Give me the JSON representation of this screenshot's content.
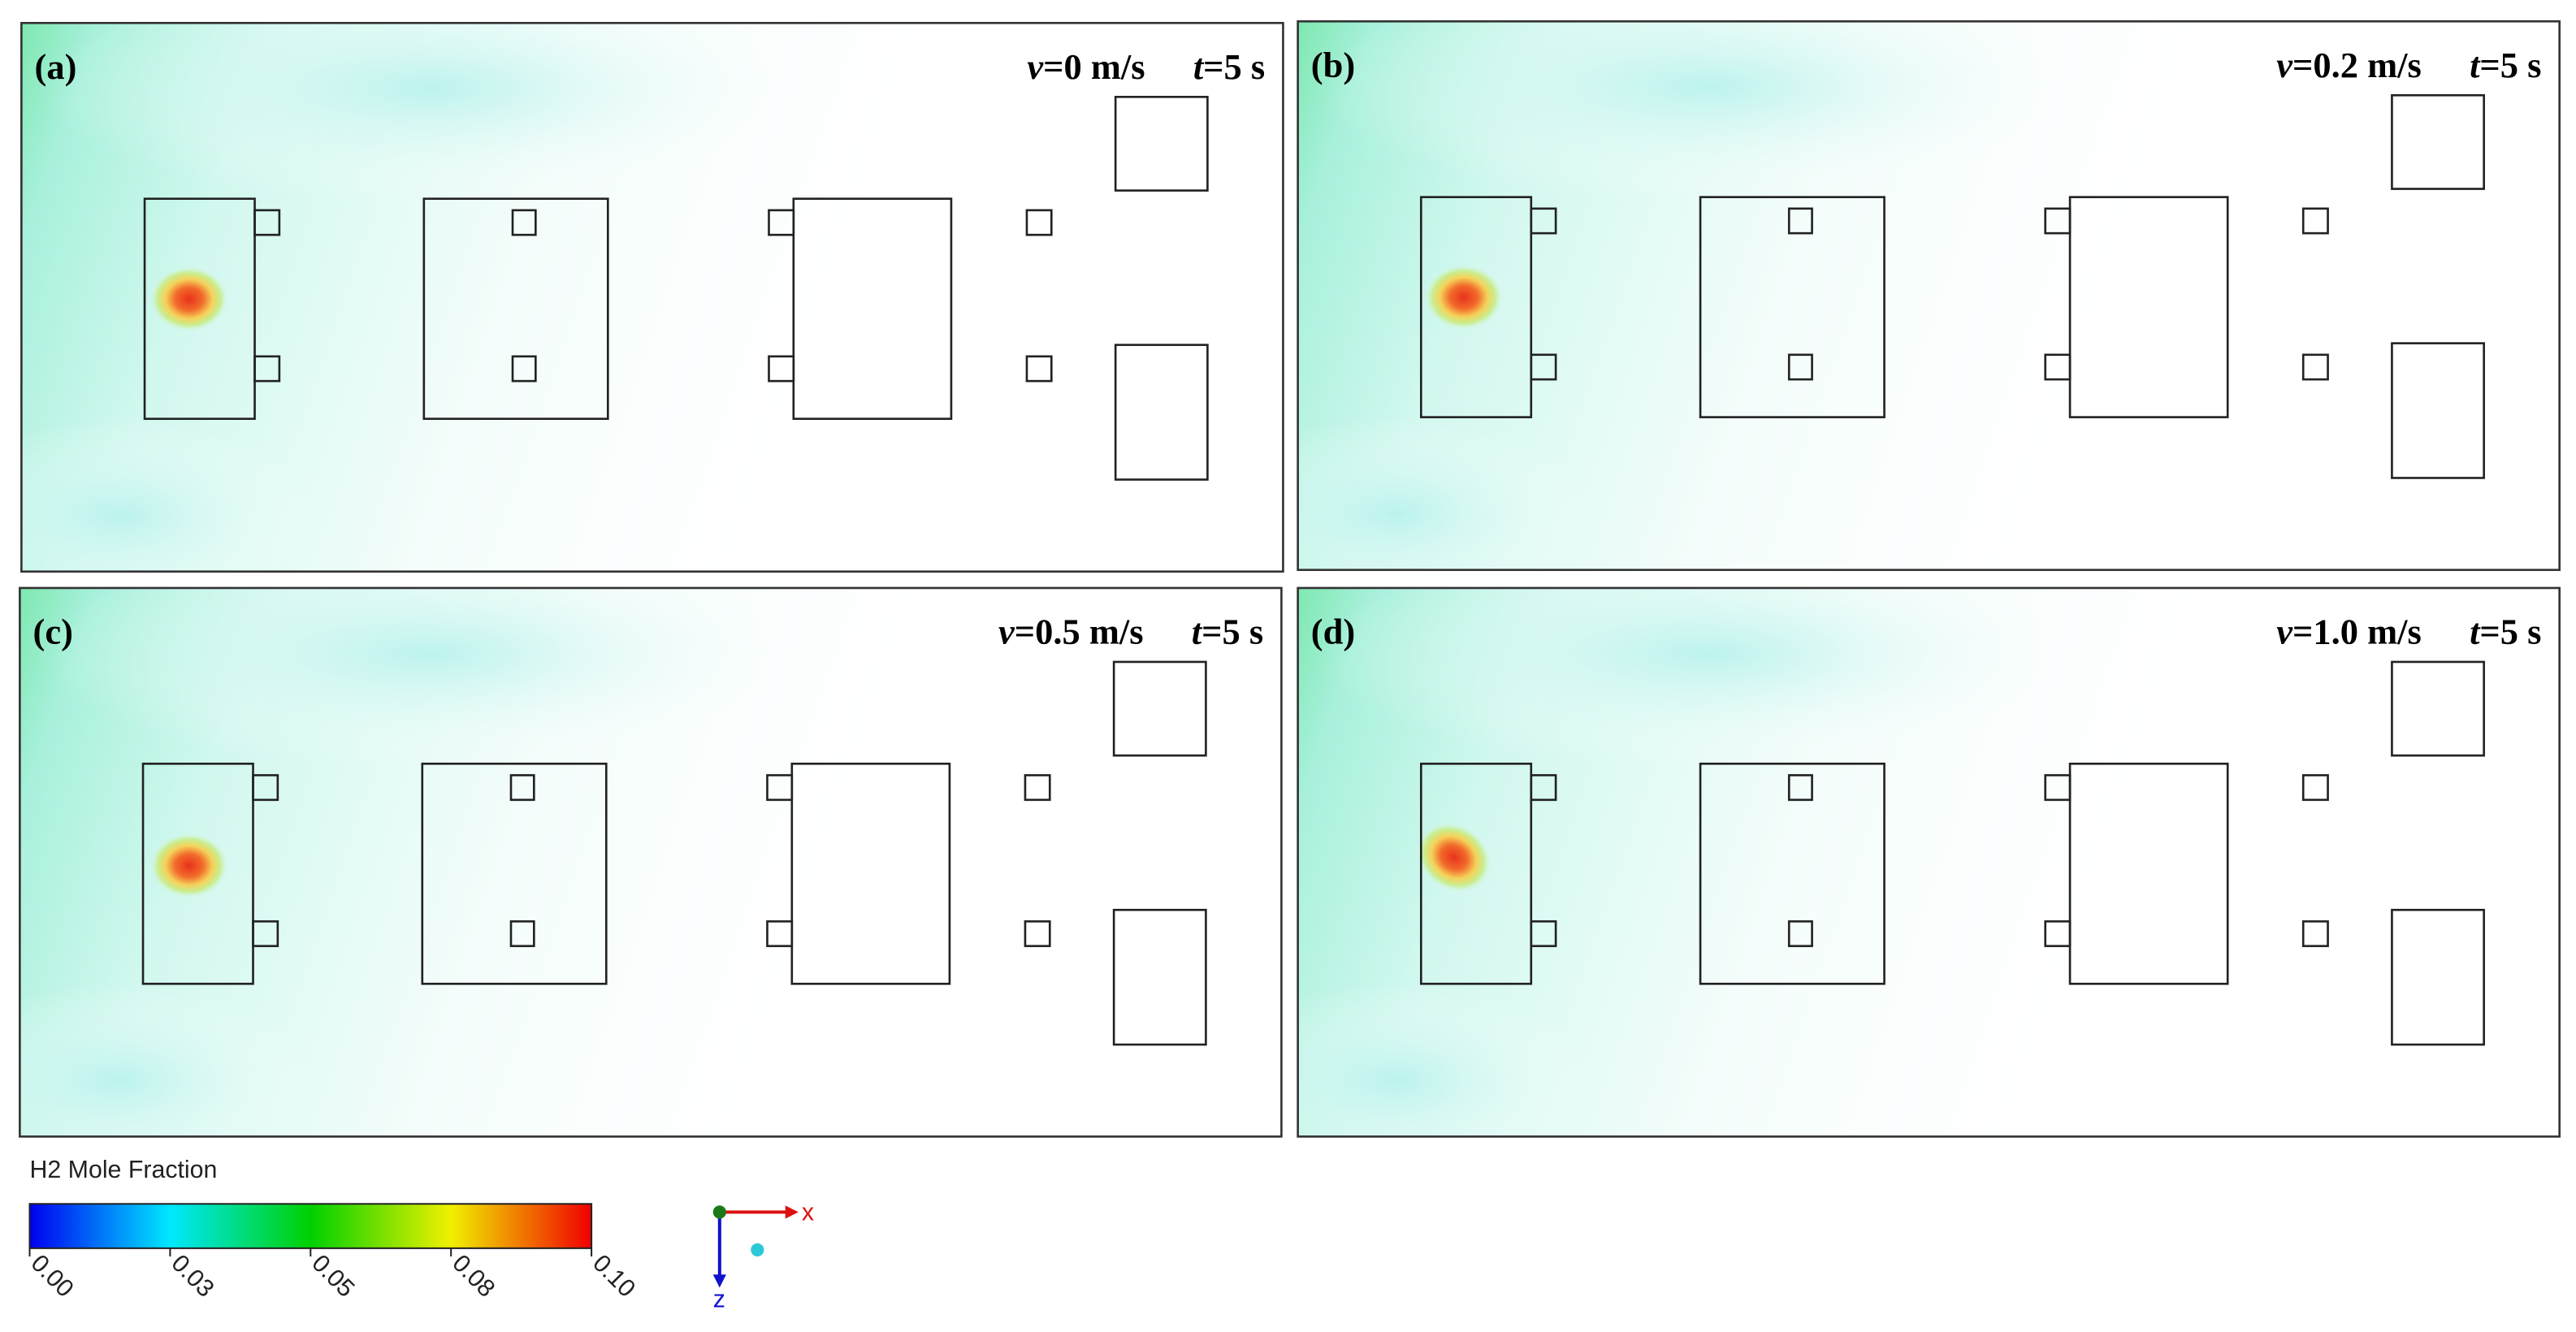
{
  "panels": [
    {
      "label": "(a)",
      "velocity": {
        "symbol": "v",
        "text": "=0 m/s"
      },
      "time": {
        "symbol": "t",
        "text": "=5 s"
      }
    },
    {
      "label": "(b)",
      "velocity": {
        "symbol": "v",
        "text": "=0.2 m/s"
      },
      "time": {
        "symbol": "t",
        "text": "=5 s"
      }
    },
    {
      "label": "(c)",
      "velocity": {
        "symbol": "v",
        "text": "=0.5 m/s"
      },
      "time": {
        "symbol": "t",
        "text": "=5 s"
      }
    },
    {
      "label": "(d)",
      "velocity": {
        "symbol": "v",
        "text": "=1.0 m/s"
      },
      "time": {
        "symbol": "t",
        "text": "=5 s"
      }
    }
  ],
  "colorbar": {
    "title": "H2 Mole Fraction",
    "range": [
      0,
      0.1
    ],
    "ticks": [
      {
        "value": 0,
        "label": "0.00"
      },
      {
        "value": 0.025,
        "label": "0.03"
      },
      {
        "value": 0.05,
        "label": "0.05"
      },
      {
        "value": 0.075,
        "label": "0.08"
      },
      {
        "value": 0.1,
        "label": "0.10"
      }
    ]
  },
  "axes_triad": {
    "x_label": "x",
    "z_label": "z"
  }
}
